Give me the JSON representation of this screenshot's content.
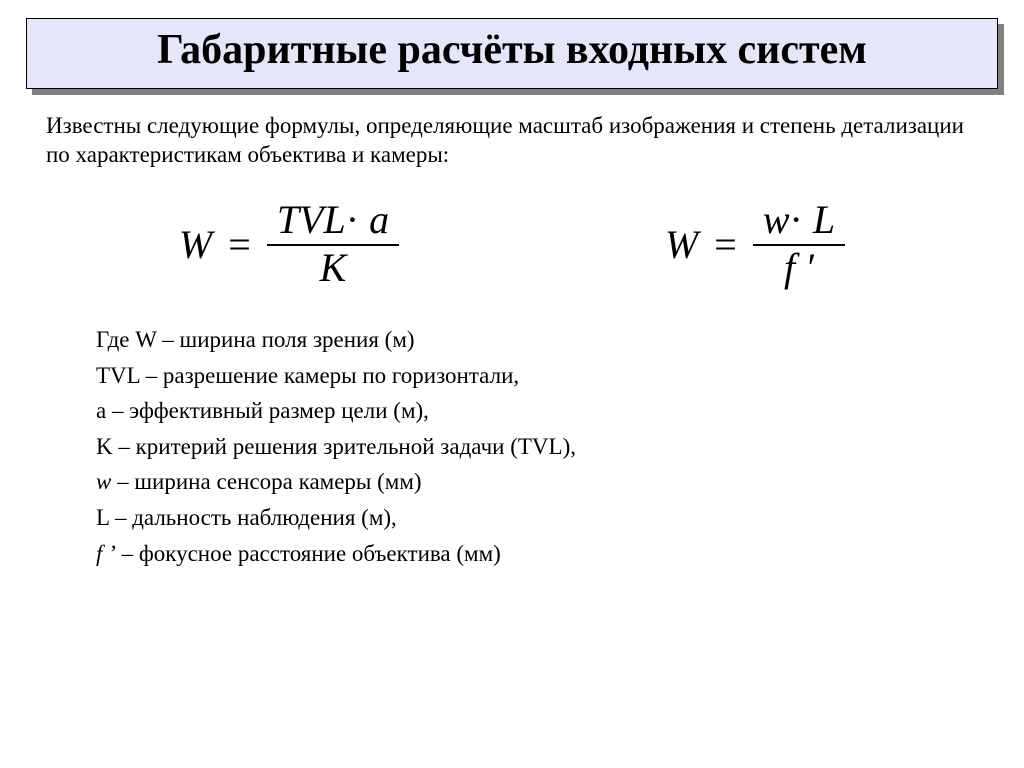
{
  "title": "Габаритные расчёты входных систем",
  "intro": "Известны следующие формулы, определяющие масштаб изображения и степень детализации по характеристикам объектива и камеры:",
  "formula1": {
    "lhs": "W",
    "eq": "=",
    "num_a": "TVL",
    "dot": "·",
    "num_b": "a",
    "den": "K"
  },
  "formula2": {
    "lhs": "W",
    "eq": "=",
    "num_a": "w",
    "dot": "·",
    "num_b": "L",
    "den": "f ′"
  },
  "defs": [
    {
      "sym": "Где W",
      "text": " – ширина поля зрения (м)"
    },
    {
      "sym": "TVL",
      "text": " – разрешение камеры по горизонтали,"
    },
    {
      "sym": "a",
      "text": " – эффективный размер цели (м),"
    },
    {
      "sym": "K",
      "text": " – критерий решения зрительной задачи (TVL),"
    },
    {
      "sym": "w",
      "text": " – ширина сенсора камеры (мм)"
    },
    {
      "sym": "L",
      "text": " – дальность наблюдения (м),"
    },
    {
      "sym": "f ’",
      "text": " – фокусное расстояние объектива (мм)"
    }
  ],
  "colors": {
    "title_bg": "#e6e6fa",
    "shadow": "#808080",
    "text": "#000000",
    "page_bg": "#ffffff"
  },
  "fonts": {
    "title_size_pt": 32,
    "body_size_pt": 17,
    "formula_size_pt": 30
  }
}
